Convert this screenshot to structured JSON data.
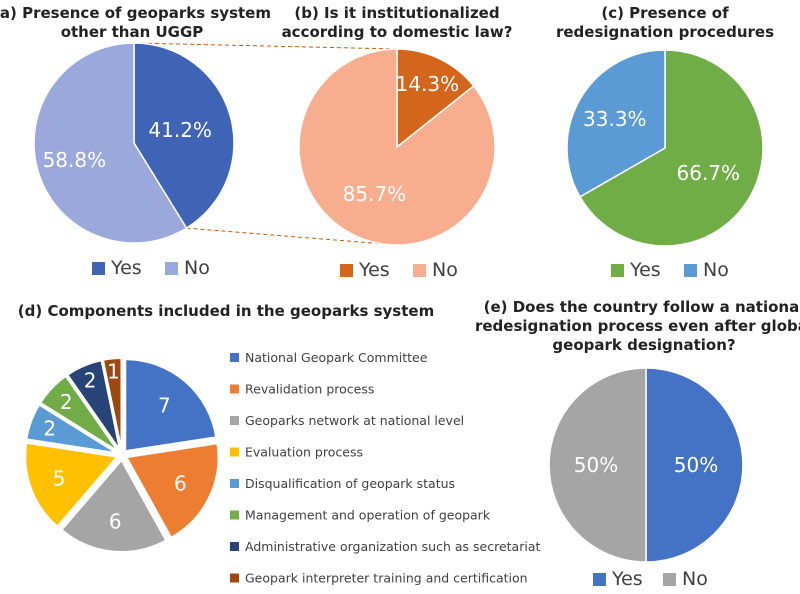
{
  "colors": {
    "blue": "#4472C4",
    "orange": "#ED7D31",
    "gray": "#A5A5A5",
    "yellow": "#FFC000",
    "lightblue": "#5B9BD5",
    "green": "#70AD47",
    "navy": "#264478",
    "brown": "#9E480E",
    "a_yes": "#3F63B5",
    "a_no": "#9BA8DC",
    "b_yes": "#D4661C",
    "b_no": "#F8AD8E",
    "c_yes": "#70AD47",
    "c_no": "#5B9BD5",
    "e_yes": "#4472C4",
    "e_no": "#A5A5A5"
  },
  "chart_data": [
    {
      "id": "a",
      "type": "pie",
      "title": "(a) Presence of geoparks system\nother than UGGP",
      "categories": [
        "Yes",
        "No"
      ],
      "values": [
        41.2,
        58.8
      ],
      "labels": [
        "41.2%",
        "58.8%"
      ],
      "legend": [
        "Yes",
        "No"
      ],
      "legend_position": "bottom"
    },
    {
      "id": "b",
      "type": "pie",
      "title": "(b) Is it institutionalized\naccording to domestic law?",
      "categories": [
        "Yes",
        "No"
      ],
      "values": [
        14.3,
        85.7
      ],
      "labels": [
        "14.3%",
        "85.7%"
      ],
      "legend": [
        "Yes",
        "No"
      ],
      "legend_position": "bottom"
    },
    {
      "id": "c",
      "type": "pie",
      "title": "(c) Presence of\nredesignation procedures",
      "categories": [
        "Yes",
        "No"
      ],
      "values": [
        66.7,
        33.3
      ],
      "labels": [
        "66.7%",
        "33.3%"
      ],
      "legend": [
        "Yes",
        "No"
      ],
      "legend_position": "bottom"
    },
    {
      "id": "d",
      "type": "pie",
      "title": "(d) Components included in the geoparks system",
      "categories": [
        "National Geopark Committee",
        "Revalidation process",
        "Geoparks network at national level",
        "Evaluation process",
        "Disqualification of geopark status",
        "Management and operation of geopark",
        "Administrative organization such as secretariat",
        "Geopark interpreter training and certification"
      ],
      "values": [
        7,
        6,
        6,
        5,
        2,
        2,
        2,
        1
      ],
      "labels": [
        "7",
        "6",
        "6",
        "5",
        "2",
        "2",
        "2",
        "1"
      ],
      "exploded": true,
      "legend_position": "right"
    },
    {
      "id": "e",
      "type": "pie",
      "title": "(e) Does the country follow a national\nredesignation process even after global\ngeopark designation?",
      "categories": [
        "Yes",
        "No"
      ],
      "values": [
        50,
        50
      ],
      "labels": [
        "50%",
        "50%"
      ],
      "legend": [
        "Yes",
        "No"
      ],
      "legend_position": "bottom"
    }
  ]
}
